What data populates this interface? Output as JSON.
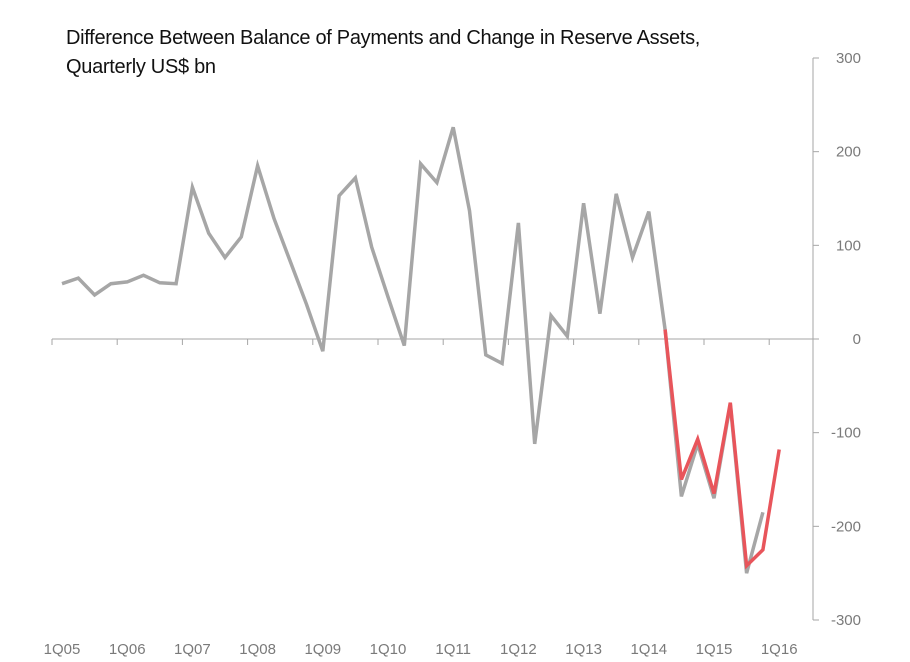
{
  "chart_data": {
    "type": "line",
    "title": [
      "Difference Between Balance of Payments and Change in Reserve Assets,",
      "Quarterly US$ bn"
    ],
    "xlabel": "",
    "ylabel": "",
    "ylim": [
      -300,
      300
    ],
    "yticks": [
      300,
      200,
      100,
      0,
      -100,
      -200,
      -300
    ],
    "ytick_labels": [
      "300",
      "200",
      "100",
      "0",
      "-100",
      "-200",
      "-300"
    ],
    "y_axis_position": "right",
    "grid": false,
    "x_tick_labels": [
      "1Q05",
      "1Q06",
      "1Q07",
      "1Q08",
      "1Q09",
      "1Q10",
      "1Q11",
      "1Q12",
      "1Q13",
      "1Q14",
      "1Q15",
      "1Q16"
    ],
    "x": [
      "1Q05",
      "2Q05",
      "3Q05",
      "4Q05",
      "1Q06",
      "2Q06",
      "3Q06",
      "4Q06",
      "1Q07",
      "2Q07",
      "3Q07",
      "4Q07",
      "1Q08",
      "2Q08",
      "3Q08",
      "4Q08",
      "1Q09",
      "2Q09",
      "3Q09",
      "4Q09",
      "1Q10",
      "2Q10",
      "3Q10",
      "4Q10",
      "1Q11",
      "2Q11",
      "3Q11",
      "4Q11",
      "1Q12",
      "2Q12",
      "3Q12",
      "4Q12",
      "1Q13",
      "2Q13",
      "3Q13",
      "4Q13",
      "1Q14",
      "2Q14",
      "3Q14",
      "4Q14",
      "1Q15",
      "2Q15",
      "3Q15",
      "4Q15",
      "1Q16"
    ],
    "series": [
      {
        "color": "#a6a6a6",
        "values": [
          59,
          65,
          47,
          59,
          61,
          68,
          60,
          59,
          162,
          113,
          87,
          109,
          185,
          129,
          83,
          37,
          -13,
          153,
          172,
          98,
          45,
          -7,
          187,
          167,
          226,
          137,
          -17,
          -26,
          124,
          -112,
          25,
          3,
          145,
          27,
          155,
          87,
          136,
          10,
          -168,
          -112,
          -170,
          -70,
          -250,
          -185,
          null
        ]
      },
      {
        "color": "#e8555b",
        "values": [
          null,
          null,
          null,
          null,
          null,
          null,
          null,
          null,
          null,
          null,
          null,
          null,
          null,
          null,
          null,
          null,
          null,
          null,
          null,
          null,
          null,
          null,
          null,
          null,
          null,
          null,
          null,
          null,
          null,
          null,
          null,
          null,
          null,
          null,
          null,
          null,
          null,
          10,
          -150,
          -107,
          -165,
          -68,
          -242,
          -225,
          -118
        ]
      }
    ]
  }
}
